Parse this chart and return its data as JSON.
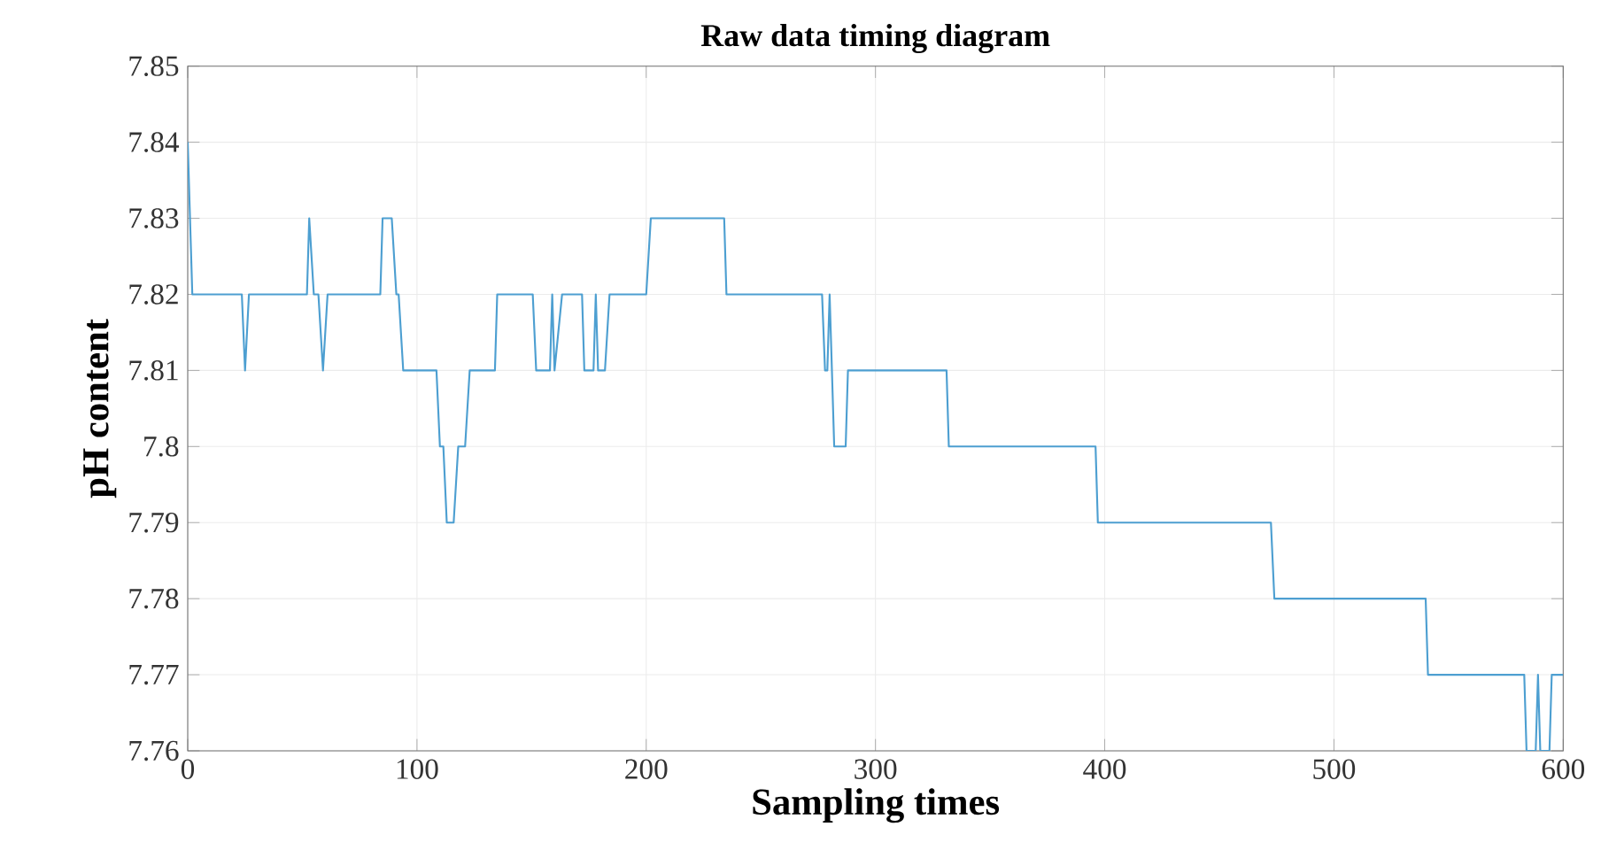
{
  "chart_data": {
    "type": "line",
    "title": "Raw data timing diagram",
    "xlabel": "Sampling times",
    "ylabel": "pH content",
    "xlim": [
      0,
      600
    ],
    "ylim": [
      7.76,
      7.85
    ],
    "xticks": [
      0,
      100,
      200,
      300,
      400,
      500,
      600
    ],
    "yticks": [
      7.76,
      7.77,
      7.78,
      7.79,
      7.8,
      7.81,
      7.82,
      7.83,
      7.84,
      7.85
    ],
    "grid": true,
    "line_style": "solid",
    "series": [
      {
        "color": "#4d9fd1",
        "x": [
          0,
          2,
          23.6,
          25,
          26.7,
          52,
          53,
          55,
          57,
          59,
          61,
          84,
          85,
          89,
          91,
          92,
          94,
          108.5,
          110,
          111.5,
          113,
          116,
          118,
          121,
          123,
          134,
          135,
          150.5,
          152,
          158,
          159,
          160,
          163.3,
          172,
          173,
          177,
          178,
          179,
          182,
          184,
          200,
          202,
          234,
          235,
          276.7,
          278,
          279,
          280,
          282,
          287,
          288,
          331,
          332,
          396,
          397,
          472.5,
          474,
          540,
          541,
          583,
          584,
          588,
          589,
          590,
          594,
          595,
          600
        ],
        "values": [
          7.84,
          7.82,
          7.82,
          7.81,
          7.82,
          7.82,
          7.83,
          7.82,
          7.82,
          7.81,
          7.82,
          7.82,
          7.83,
          7.83,
          7.82,
          7.82,
          7.81,
          7.81,
          7.8,
          7.8,
          7.79,
          7.79,
          7.8,
          7.8,
          7.81,
          7.81,
          7.82,
          7.82,
          7.81,
          7.81,
          7.82,
          7.81,
          7.82,
          7.82,
          7.81,
          7.81,
          7.82,
          7.81,
          7.81,
          7.82,
          7.82,
          7.83,
          7.83,
          7.82,
          7.82,
          7.81,
          7.81,
          7.82,
          7.8,
          7.8,
          7.81,
          7.81,
          7.8,
          7.8,
          7.79,
          7.79,
          7.78,
          7.78,
          7.77,
          7.77,
          7.76,
          7.76,
          7.77,
          7.76,
          7.76,
          7.77,
          7.77
        ]
      }
    ]
  }
}
